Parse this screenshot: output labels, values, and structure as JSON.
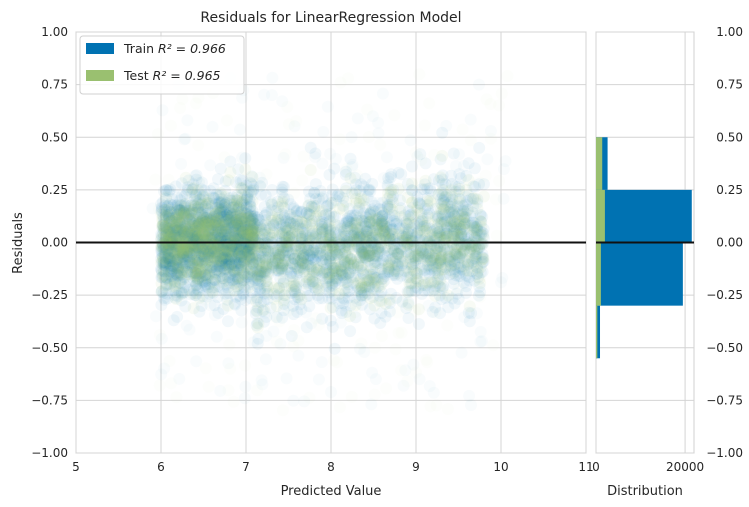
{
  "chart_data": {
    "type": "scatter",
    "title": "Residuals for LinearRegression Model",
    "xlabel": "Predicted Value",
    "ylabel": "Residuals",
    "xlim": [
      5,
      11
    ],
    "ylim": [
      -1.0,
      1.0
    ],
    "x_ticks": [
      "5",
      "6",
      "7",
      "8",
      "9",
      "10",
      "11"
    ],
    "y_ticks": [
      "−1.00",
      "−0.75",
      "−0.50",
      "−0.25",
      "0.00",
      "0.25",
      "0.50",
      "0.75",
      "1.00"
    ],
    "grid": true,
    "zero_line": 0.0,
    "legend": {
      "placement": "top-left",
      "entries": [
        {
          "label_prefix": "Train ",
          "label_math": "R² = 0.966",
          "color": "#0072b2"
        },
        {
          "label_prefix": "Test ",
          "label_math": "R² = 0.965",
          "color": "#9ac070"
        }
      ]
    },
    "series": [
      {
        "name": "Train",
        "color": "#0072b2",
        "clusters": [
          {
            "x_range": [
              6.0,
              7.1
            ],
            "center": 0.05,
            "spread": 0.12
          },
          {
            "x_range": [
              7.1,
              9.8
            ],
            "center": -0.02,
            "spread": 0.15
          }
        ]
      },
      {
        "name": "Test",
        "color": "#9ac070",
        "clusters": [
          {
            "x_range": [
              6.0,
              7.1
            ],
            "center": 0.06,
            "spread": 0.1
          },
          {
            "x_range": [
              7.1,
              9.8
            ],
            "center": -0.03,
            "spread": 0.12
          }
        ]
      }
    ],
    "distribution": {
      "xlabel": "Distribution",
      "x_ticks": [
        "0",
        "20000"
      ],
      "xlim": [
        0,
        22000
      ],
      "y_ticks": [
        "1.00",
        "0.75",
        "0.50",
        "0.25",
        "0.00",
        "−0.25",
        "−0.50",
        "−0.75",
        "−1.00"
      ],
      "bin_edges": [
        -0.55,
        -0.3,
        0.0,
        0.25,
        0.5
      ],
      "train_counts": [
        900,
        19500,
        21500,
        2600
      ],
      "test_counts": [
        300,
        1100,
        2000,
        1400
      ]
    }
  }
}
